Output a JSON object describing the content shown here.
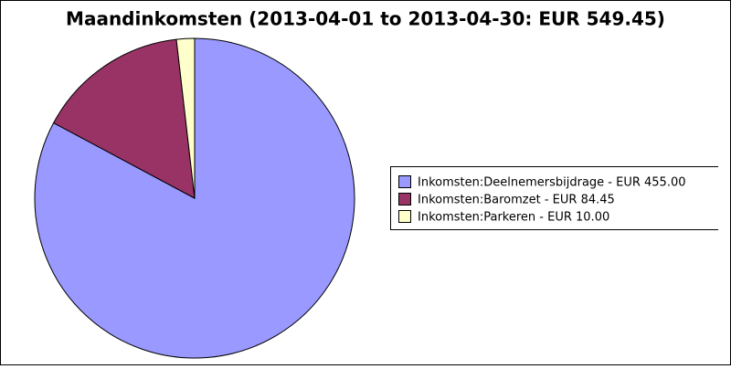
{
  "chart_data": {
    "type": "pie",
    "title": "Maandinkomsten (2013-04-01 to 2013-04-30: EUR 549.45)",
    "categories": [
      "Inkomsten:Deelnemersbijdrage - EUR 455.00",
      "Inkomsten:Baromzet - EUR 84.45",
      "Inkomsten:Parkeren - EUR 10.00"
    ],
    "values": [
      455.0,
      84.45,
      10.0
    ],
    "colors": [
      "#9999ff",
      "#993366",
      "#ffffcc"
    ],
    "legend": "right"
  }
}
